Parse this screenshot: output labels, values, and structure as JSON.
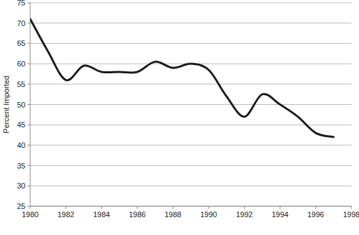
{
  "chart_data": {
    "type": "line",
    "ylabel": "Percent Imported",
    "x": [
      1980,
      1981,
      1982,
      1983,
      1984,
      1985,
      1986,
      1987,
      1988,
      1989,
      1990,
      1991,
      1992,
      1993,
      1994,
      1995,
      1996,
      1997
    ],
    "values": [
      71,
      63,
      56,
      59.5,
      58,
      58,
      58,
      60.5,
      59,
      60,
      58.5,
      52,
      47,
      52.5,
      50,
      47,
      43,
      42
    ],
    "color": "#1a1a1a",
    "xlim": [
      1980,
      1998
    ],
    "xticks": [
      1980,
      1982,
      1984,
      1986,
      1988,
      1990,
      1992,
      1994,
      1996,
      1998
    ],
    "ylim": [
      25,
      75
    ],
    "yticks": [
      25,
      30,
      35,
      40,
      45,
      50,
      55,
      60,
      65,
      70,
      75
    ],
    "grid": true
  }
}
